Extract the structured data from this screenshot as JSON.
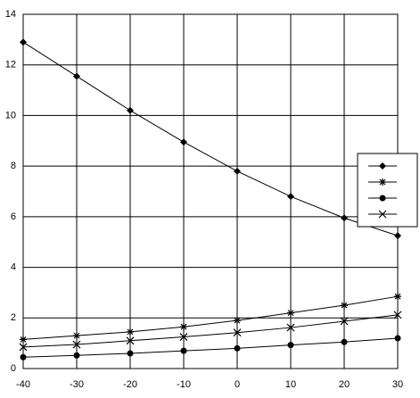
{
  "chart_data": {
    "type": "line",
    "x": [
      -40,
      -30,
      -20,
      -10,
      0,
      10,
      20,
      30
    ],
    "xlim": [
      -40,
      30
    ],
    "xticks": [
      -40,
      -30,
      -20,
      -10,
      0,
      10,
      20,
      30
    ],
    "ylim": [
      0,
      14
    ],
    "yticks": [
      0,
      2,
      4,
      6,
      8,
      10,
      12,
      14
    ],
    "grid": true,
    "legend": "right",
    "series": [
      {
        "color": "#000000",
        "marker": "diamond",
        "values": [
          12.9,
          11.55,
          10.2,
          8.95,
          7.8,
          6.8,
          5.95,
          5.25
        ]
      },
      {
        "color": "#000000",
        "marker": "star",
        "values": [
          1.15,
          1.3,
          1.45,
          1.65,
          1.9,
          2.2,
          2.5,
          2.85
        ]
      },
      {
        "color": "#000000",
        "marker": "circle",
        "values": [
          0.45,
          0.52,
          0.6,
          0.7,
          0.8,
          0.93,
          1.05,
          1.2
        ]
      },
      {
        "color": "#000000",
        "marker": "cross",
        "values": [
          0.85,
          0.95,
          1.1,
          1.25,
          1.42,
          1.62,
          1.87,
          2.12
        ]
      }
    ]
  }
}
